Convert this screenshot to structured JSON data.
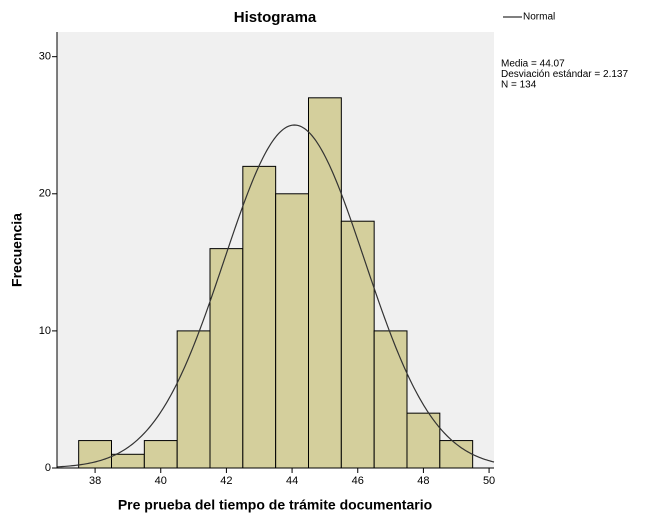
{
  "chart_data": {
    "type": "histogram",
    "title": "Histograma",
    "x_label": "Pre prueba del tiempo de trámite documentario",
    "y_label": "Frecuencia",
    "bins": [
      37.5,
      38.5,
      39.5,
      40.5,
      41.5,
      42.5,
      43.5,
      44.5,
      45.5,
      46.5,
      47.5,
      48.5,
      49.5
    ],
    "values": [
      2,
      1,
      2,
      10,
      16,
      22,
      20,
      27,
      18,
      10,
      4,
      2
    ],
    "color": "#d4cf9c",
    "xlim": [
      36.84,
      50.15
    ],
    "xticks": [
      38,
      40,
      42,
      44,
      46,
      48,
      50
    ],
    "ylim": [
      0,
      31.8
    ],
    "yticks": [
      0,
      10,
      20,
      30
    ],
    "legend": {
      "name": "Normal",
      "position": "top-right"
    },
    "stats": {
      "mean": {
        "value": 44.07,
        "label": "Media = 44.07"
      },
      "sd": {
        "value": 2.137,
        "label": "Desviación estándar = 2.137"
      },
      "n": {
        "value": 134,
        "label": "N = 134"
      }
    }
  }
}
